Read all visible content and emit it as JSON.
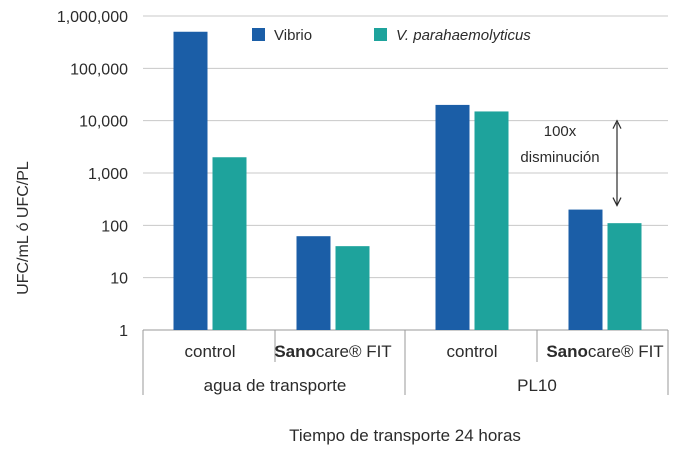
{
  "chart_data": {
    "type": "bar",
    "yscale": "log",
    "ylim": [
      1,
      1000000
    ],
    "yticks": [
      1,
      10,
      100,
      1000,
      10000,
      100000,
      1000000
    ],
    "ytick_labels": [
      "1",
      "10",
      "100",
      "1,000",
      "10,000",
      "100,000",
      "1,000,000"
    ],
    "ylabel": "UFC/mL ó UFC/PL",
    "xlabel": "Tiempo de transporte 24 horas",
    "grid": true,
    "legend_position": "top",
    "groups": [
      "agua de transporte",
      "PL10"
    ],
    "categories": [
      {
        "brand": "",
        "rest": "control",
        "group": "agua de transporte"
      },
      {
        "brand": "Sano",
        "rest": "care® FIT",
        "group": "agua de transporte"
      },
      {
        "brand": "",
        "rest": "control",
        "group": "PL10"
      },
      {
        "brand": "Sano",
        "rest": "care® FIT",
        "group": "PL10"
      }
    ],
    "series": [
      {
        "name": "Vibrio",
        "italic": false,
        "color": "#1b5ea7",
        "values": [
          500000,
          62,
          20000,
          200
        ]
      },
      {
        "name": "V. parahaemolyticus",
        "italic": true,
        "color": "#1ea39c",
        "values": [
          2000,
          40,
          15000,
          110
        ]
      }
    ],
    "annotation": {
      "line1": "100x",
      "line2": "disminución",
      "from": 200,
      "to": 10000
    }
  }
}
